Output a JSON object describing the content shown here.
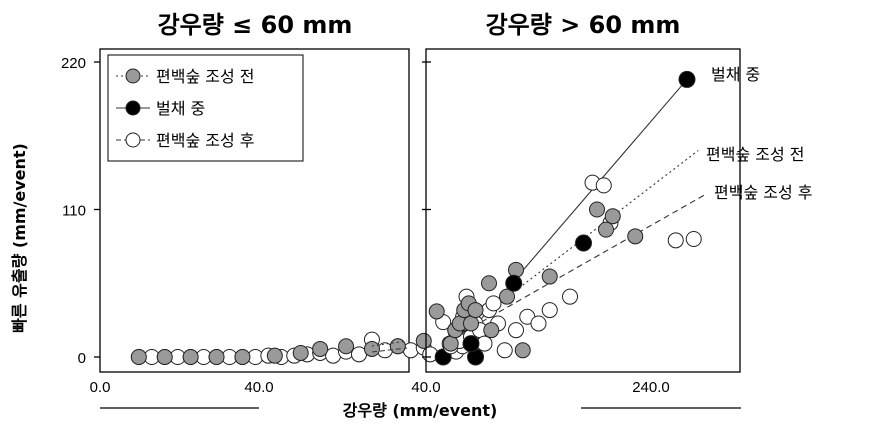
{
  "chart_data": [
    {
      "type": "scatter",
      "title": "강우량 ≤ 60 mm",
      "xlabel": "강우량 (mm/event)",
      "ylabel": "빠른 유출량 (mm/event)",
      "xlim": [
        0,
        60
      ],
      "ylim": [
        0,
        220
      ],
      "x_ticks": [
        "0.0",
        "40.0"
      ],
      "y_ticks": [
        "0",
        "110",
        "220"
      ],
      "legend": {
        "placement": "top-left"
      },
      "series": [
        {
          "name": "편백숲 조성 전",
          "color": "#9a9a9a",
          "x": [
            6,
            10,
            14,
            18,
            22,
            27,
            31,
            34,
            38,
            42,
            46,
            50,
            52,
            55,
            57
          ],
          "y": [
            0,
            0,
            0,
            0,
            0,
            1,
            3,
            6,
            8,
            6,
            8,
            12,
            34,
            18,
            15
          ],
          "fit": null
        },
        {
          "name": "벌채 중",
          "color": "#000000",
          "x": [
            53,
            58
          ],
          "y": [
            0,
            0
          ],
          "fit": null
        },
        {
          "name": "편백숲 조성 후",
          "color": "#ffffff",
          "x": [
            6,
            8,
            10,
            12,
            14,
            16,
            18,
            20,
            22,
            24,
            26,
            28,
            30,
            32,
            34,
            36,
            38,
            40,
            42,
            44,
            46,
            48,
            50,
            51,
            53,
            54,
            55,
            56
          ],
          "y": [
            0,
            0,
            0,
            0,
            0,
            0,
            0,
            0,
            0,
            0,
            1,
            0,
            1,
            2,
            3,
            1,
            4,
            2,
            13,
            5,
            8,
            5,
            7,
            2,
            26,
            10,
            4,
            8
          ],
          "fit": null
        }
      ]
    },
    {
      "type": "scatter",
      "title": "강우량 > 60 mm",
      "xlabel": "강우량 (mm/event)",
      "xlim": [
        40,
        300
      ],
      "ylim": [
        0,
        220
      ],
      "x_ticks": [
        "40.0",
        "240.0"
      ],
      "series": [
        {
          "name": "편백숲 조성 전",
          "label": "편백숲 조성 전",
          "color": "#9a9a9a",
          "x": [
            62,
            66,
            70,
            74,
            78,
            80,
            84,
            96,
            98,
            112,
            120,
            126,
            150,
            192,
            200,
            206,
            226
          ],
          "y": [
            10,
            20,
            25,
            35,
            40,
            25,
            35,
            55,
            20,
            45,
            65,
            5,
            60,
            110,
            95,
            105,
            90
          ],
          "fit": {
            "style": "dotted",
            "x": [
              66,
              282
            ],
            "y": [
              15,
              154
            ]
          }
        },
        {
          "name": "벌채 중",
          "label": "벌채 중",
          "color": "#000000",
          "x": [
            80,
            118,
            180,
            272
          ],
          "y": [
            10,
            55,
            85,
            207
          ],
          "fit": {
            "style": "solid",
            "x": [
              62,
              272
            ],
            "y": [
              2,
              207
            ]
          }
        },
        {
          "name": "편백숲 조성 후",
          "label": "편백숲 조성 후",
          "color": "#ffffff",
          "x": [
            62,
            66,
            70,
            73,
            76,
            80,
            84,
            88,
            92,
            96,
            100,
            104,
            110,
            120,
            130,
            140,
            150,
            168,
            188,
            198,
            204,
            262,
            278
          ],
          "y": [
            8,
            20,
            12,
            30,
            45,
            15,
            25,
            20,
            10,
            35,
            40,
            25,
            5,
            20,
            30,
            25,
            35,
            45,
            130,
            128,
            100,
            87,
            88
          ],
          "fit": {
            "style": "dashed",
            "x": [
              66,
              290
            ],
            "y": [
              15,
              122
            ]
          }
        }
      ]
    }
  ]
}
